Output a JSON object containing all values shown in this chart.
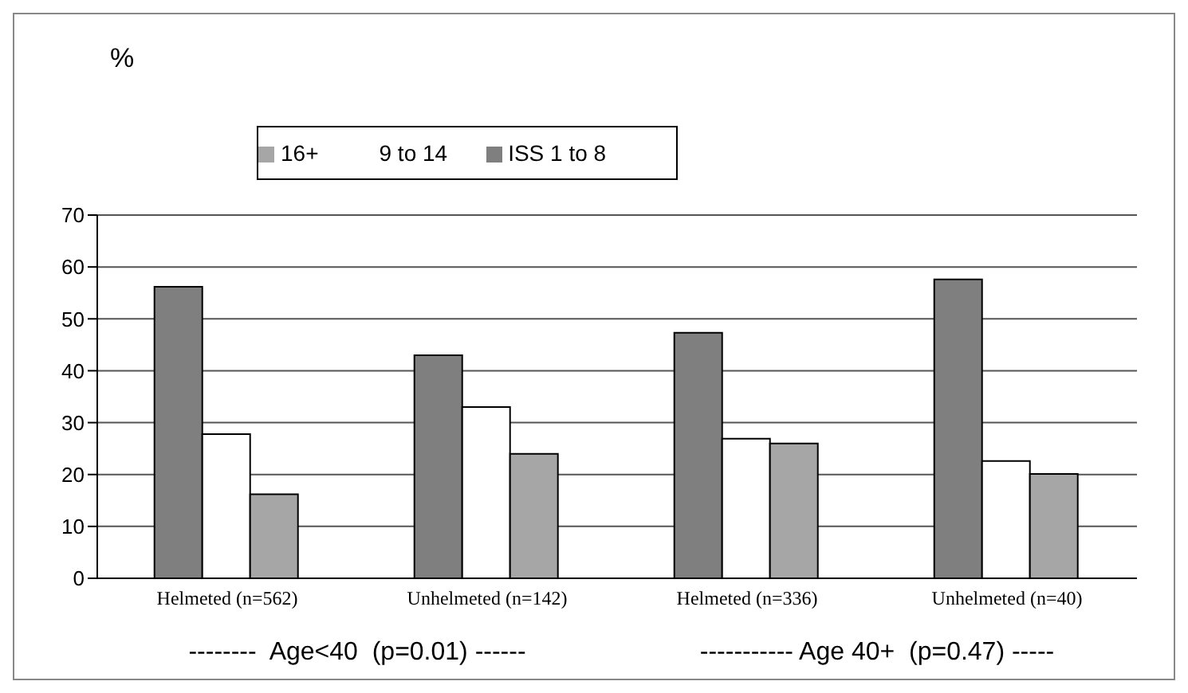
{
  "chart_data": {
    "type": "bar",
    "ylabel": "%",
    "categories": [
      "Helmeted (n=562)",
      "Unhelmeted (n=142)",
      "Helmeted (n=336)",
      "Unhelmeted (n=40)"
    ],
    "series": [
      {
        "name": "ISS 1 to 8",
        "color": "#7f7f7f",
        "values": [
          56.2,
          43,
          47.3,
          57.6
        ]
      },
      {
        "name": "9 to 14",
        "color": "#ffffff",
        "values": [
          27.8,
          33,
          26.9,
          22.6
        ]
      },
      {
        "name": "16+",
        "color": "#a6a6a6",
        "values": [
          16.2,
          24,
          26,
          20.1
        ]
      }
    ],
    "ylim": [
      0,
      70
    ],
    "yticks": [
      0,
      10,
      20,
      30,
      40,
      50,
      60,
      70
    ],
    "grid": "y",
    "legend": "top left",
    "annotations": [
      "--------  Age<40  (p=0.01) ------",
      "----------- Age 40+  (p=0.47) -----"
    ]
  }
}
